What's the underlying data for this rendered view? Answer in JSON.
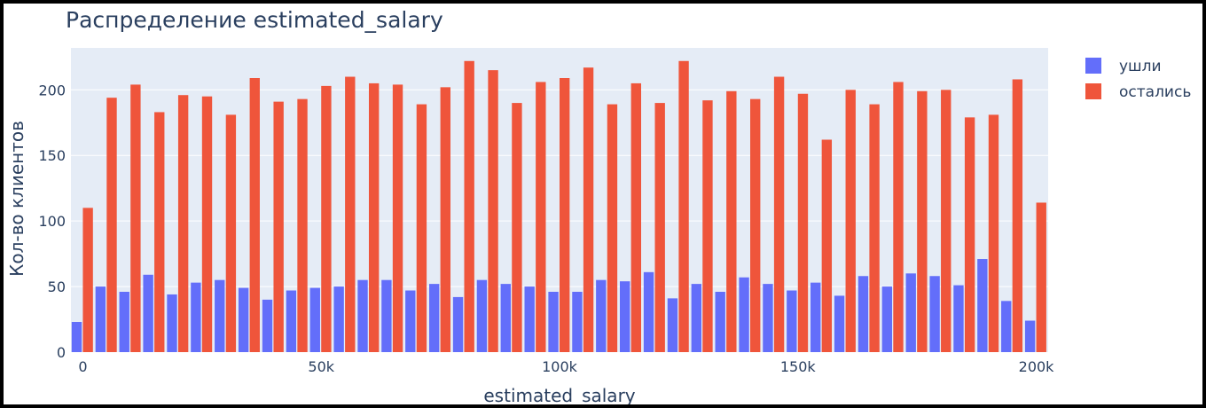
{
  "chart_data": {
    "type": "bar",
    "title": "Распределение estimated_salary",
    "xlabel": "estimated_salary",
    "ylabel": "Кол-во клиентов",
    "xlim": [
      -2500,
      202500
    ],
    "ylim": [
      0,
      232
    ],
    "xticks": [
      0,
      50000,
      100000,
      150000,
      200000
    ],
    "xtick_labels": [
      "0",
      "50k",
      "100k",
      "150k",
      "200k"
    ],
    "yticks": [
      0,
      50,
      100,
      150,
      200
    ],
    "ytick_labels": [
      "0",
      "50",
      "100",
      "150",
      "200"
    ],
    "grid": true,
    "legend_position": "top-right",
    "bin_width": 5000,
    "x": [
      0,
      5000,
      10000,
      15000,
      20000,
      25000,
      30000,
      35000,
      40000,
      45000,
      50000,
      55000,
      60000,
      65000,
      70000,
      75000,
      80000,
      85000,
      90000,
      95000,
      100000,
      105000,
      110000,
      115000,
      120000,
      125000,
      130000,
      135000,
      140000,
      145000,
      150000,
      155000,
      160000,
      165000,
      170000,
      175000,
      180000,
      185000,
      190000,
      195000,
      200000
    ],
    "series": [
      {
        "name": "ушли",
        "color": "#636efa",
        "values": [
          23,
          50,
          46,
          59,
          44,
          53,
          55,
          49,
          40,
          47,
          49,
          50,
          55,
          55,
          47,
          52,
          42,
          55,
          52,
          50,
          46,
          46,
          55,
          54,
          61,
          41,
          52,
          46,
          57,
          52,
          47,
          53,
          43,
          58,
          50,
          60,
          58,
          51,
          71,
          39,
          24
        ]
      },
      {
        "name": "остались",
        "color": "#ef553b",
        "values": [
          110,
          194,
          204,
          183,
          196,
          195,
          181,
          209,
          191,
          193,
          203,
          210,
          205,
          204,
          189,
          202,
          222,
          215,
          190,
          206,
          209,
          217,
          189,
          205,
          190,
          222,
          192,
          199,
          193,
          210,
          197,
          162,
          200,
          189,
          206,
          199,
          200,
          179,
          181,
          208,
          114
        ]
      }
    ]
  }
}
